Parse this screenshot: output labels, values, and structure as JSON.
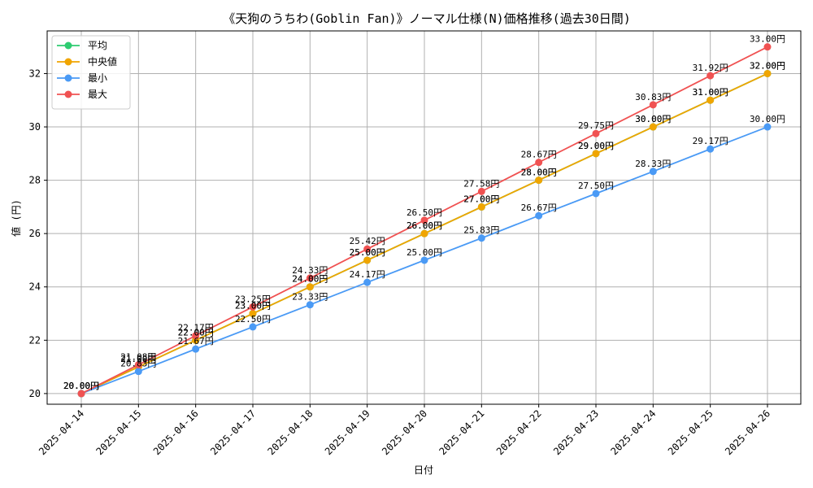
{
  "chart_data": {
    "type": "line",
    "title": "《天狗のうちわ(Goblin Fan)》ノーマル仕様(N)価格推移(過去30日間)",
    "xlabel": "日付",
    "ylabel": "値 (円)",
    "categories": [
      "2025-04-14",
      "2025-04-15",
      "2025-04-16",
      "2025-04-17",
      "2025-04-18",
      "2025-04-19",
      "2025-04-20",
      "2025-04-21",
      "2025-04-22",
      "2025-04-23",
      "2025-04-24",
      "2025-04-25",
      "2025-04-26"
    ],
    "ylim": [
      19.6,
      33.6
    ],
    "yticks": [
      "20",
      "22",
      "24",
      "26",
      "28",
      "30",
      "32"
    ],
    "grid": true,
    "legend_position": "top-left",
    "label_suffix": "円",
    "series": [
      {
        "name": "平均",
        "color": "#2ecc71",
        "values": [
          20.0,
          21.0,
          22.0,
          23.0,
          24.0,
          25.0,
          26.0,
          27.0,
          28.0,
          29.0,
          30.0,
          31.0,
          32.0
        ]
      },
      {
        "name": "中央値",
        "color": "#f0a500",
        "values": [
          20.0,
          21.0,
          22.0,
          23.0,
          24.0,
          25.0,
          26.0,
          27.0,
          28.0,
          29.0,
          30.0,
          31.0,
          32.0
        ]
      },
      {
        "name": "最小",
        "color": "#4a9af5",
        "values": [
          20.0,
          20.83,
          21.67,
          22.5,
          23.33,
          24.17,
          25.0,
          25.83,
          26.67,
          27.5,
          28.33,
          29.17,
          30.0
        ]
      },
      {
        "name": "最大",
        "color": "#f05252",
        "values": [
          20.0,
          21.08,
          22.17,
          23.25,
          24.33,
          25.42,
          26.5,
          27.58,
          28.67,
          29.75,
          30.83,
          31.92,
          33.0
        ]
      }
    ]
  }
}
